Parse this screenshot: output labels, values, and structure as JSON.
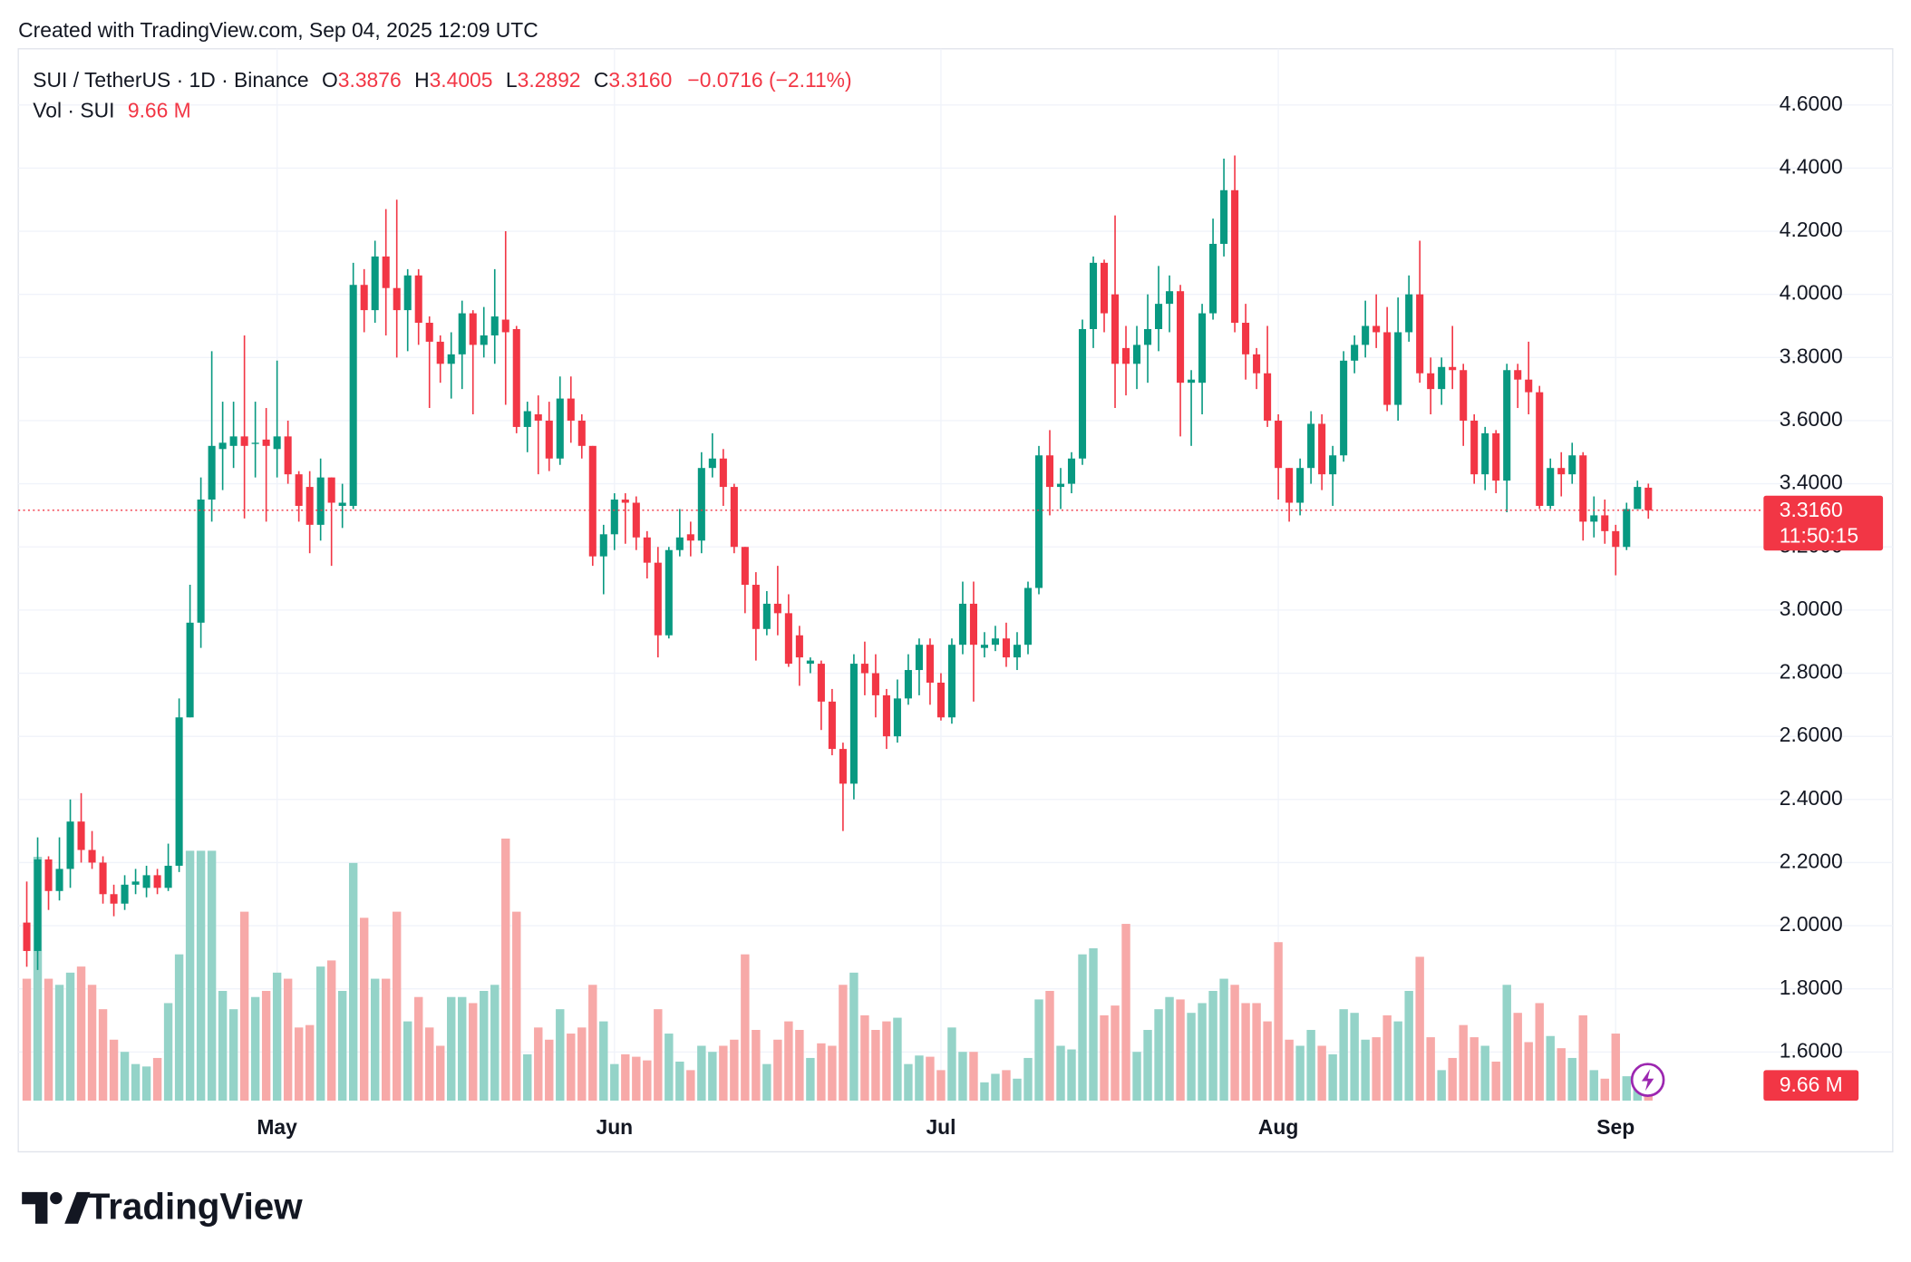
{
  "header": {
    "created": "Created with TradingView.com, Sep 04, 2025 12:09 UTC"
  },
  "brand": "TradingView",
  "chart_data": {
    "type": "candlestick",
    "symbol": "SUI / TetherUS · 1D · Binance",
    "legend": {
      "o_label": "O",
      "open": "3.3876",
      "h_label": "H",
      "high": "3.4005",
      "l_label": "L",
      "low": "3.2892",
      "c_label": "C",
      "close": "3.3160",
      "change": "−0.0716 (−2.11%)",
      "volume_title": "Vol · SUI",
      "volume": "9.66 M"
    },
    "countdown": "11:50:15",
    "up_color": "#089981",
    "down_color": "#f23645",
    "up_volume_color": "#94d3c8",
    "down_volume_color": "#f7a9a8",
    "open": [
      2.01,
      1.92,
      2.21,
      2.11,
      2.18,
      2.33,
      2.24,
      2.2,
      2.1,
      2.07,
      2.13,
      2.12,
      2.16,
      2.12,
      2.19,
      2.66,
      2.96,
      3.35,
      3.51,
      3.52,
      3.55,
      3.53,
      3.54,
      3.51,
      3.55,
      3.43,
      3.39,
      3.27,
      3.42,
      3.33,
      3.33,
      4.03,
      3.95,
      4.12,
      4.02,
      3.95,
      4.06,
      3.91,
      3.85,
      3.78,
      3.81,
      3.94,
      3.84,
      3.87,
      3.92,
      3.89,
      3.58,
      3.62,
      3.6,
      3.48,
      3.67,
      3.6,
      3.52,
      3.17,
      3.24,
      3.35,
      3.34,
      3.23,
      3.15,
      2.92,
      3.19,
      3.24,
      3.22,
      3.45,
      3.48,
      3.39,
      3.2,
      3.08,
      2.94,
      3.02,
      2.99,
      2.92,
      2.83,
      2.83,
      2.71,
      2.56,
      2.45,
      2.83,
      2.8,
      2.73,
      2.6,
      2.72,
      2.81,
      2.89,
      2.77,
      2.66,
      2.89,
      3.02,
      2.88,
      2.89,
      2.91,
      2.85,
      2.89,
      3.07,
      3.49,
      3.39,
      3.4,
      3.48,
      3.89,
      4.1,
      4.0,
      3.83,
      3.78,
      3.84,
      3.89,
      3.97,
      4.01,
      3.72,
      3.72,
      3.94,
      4.16,
      4.33,
      3.91,
      3.81,
      3.75,
      3.6,
      3.45,
      3.34,
      3.45,
      3.59,
      3.43,
      3.49,
      3.79,
      3.84,
      3.9,
      3.88,
      3.65,
      3.88,
      4.0,
      3.75,
      3.7,
      3.77,
      3.76,
      3.6,
      3.43,
      3.56,
      3.41,
      3.76,
      3.73,
      3.69,
      3.33,
      3.45,
      3.43,
      3.49,
      3.28,
      3.3,
      3.25,
      3.2,
      3.32,
      3.3876
    ],
    "high": [
      2.14,
      2.28,
      2.22,
      2.28,
      2.4,
      2.42,
      2.3,
      2.22,
      2.13,
      2.16,
      2.18,
      2.19,
      2.18,
      2.26,
      2.72,
      3.08,
      3.42,
      3.82,
      3.66,
      3.66,
      3.87,
      3.66,
      3.64,
      3.79,
      3.6,
      3.44,
      3.44,
      3.48,
      3.42,
      3.4,
      4.1,
      4.08,
      4.17,
      4.27,
      4.3,
      4.08,
      4.08,
      3.93,
      3.87,
      3.88,
      3.98,
      3.95,
      3.96,
      4.08,
      4.2,
      3.9,
      3.66,
      3.68,
      3.66,
      3.74,
      3.74,
      3.62,
      3.52,
      3.27,
      3.37,
      3.37,
      3.36,
      3.25,
      3.2,
      3.2,
      3.32,
      3.28,
      3.5,
      3.56,
      3.51,
      3.4,
      3.2,
      3.12,
      3.06,
      3.14,
      3.05,
      2.95,
      2.85,
      2.84,
      2.75,
      2.58,
      2.86,
      2.9,
      2.86,
      2.75,
      2.78,
      2.86,
      2.91,
      2.91,
      2.8,
      2.91,
      3.09,
      3.09,
      2.93,
      2.95,
      2.96,
      2.93,
      3.09,
      3.52,
      3.57,
      3.45,
      3.5,
      3.92,
      4.12,
      4.11,
      4.25,
      3.9,
      3.9,
      4.0,
      4.09,
      4.06,
      4.03,
      3.76,
      3.97,
      4.24,
      4.43,
      4.44,
      3.97,
      3.83,
      3.9,
      3.62,
      3.45,
      3.48,
      3.63,
      3.62,
      3.52,
      3.82,
      3.87,
      3.98,
      4.0,
      3.96,
      3.99,
      4.06,
      4.17,
      3.8,
      3.8,
      3.9,
      3.78,
      3.62,
      3.58,
      3.57,
      3.78,
      3.78,
      3.85,
      3.71,
      3.48,
      3.5,
      3.53,
      3.5,
      3.36,
      3.35,
      3.27,
      3.34,
      3.41,
      3.4005
    ],
    "low": [
      1.87,
      1.86,
      2.05,
      2.08,
      2.12,
      2.2,
      2.18,
      2.07,
      2.03,
      2.05,
      2.1,
      2.09,
      2.1,
      2.11,
      2.17,
      2.66,
      2.88,
      3.28,
      3.38,
      3.45,
      3.29,
      3.42,
      3.28,
      3.42,
      3.4,
      3.28,
      3.18,
      3.22,
      3.14,
      3.26,
      3.32,
      3.88,
      3.91,
      3.87,
      3.8,
      3.82,
      3.84,
      3.64,
      3.72,
      3.67,
      3.7,
      3.62,
      3.8,
      3.78,
      3.65,
      3.56,
      3.5,
      3.43,
      3.44,
      3.46,
      3.53,
      3.48,
      3.14,
      3.05,
      3.19,
      3.21,
      3.19,
      3.1,
      2.85,
      2.91,
      3.17,
      3.17,
      3.18,
      3.42,
      3.33,
      3.18,
      2.99,
      2.84,
      2.92,
      2.92,
      2.82,
      2.76,
      2.8,
      2.62,
      2.54,
      2.3,
      2.4,
      2.73,
      2.66,
      2.56,
      2.58,
      2.7,
      2.73,
      2.7,
      2.65,
      2.64,
      2.86,
      2.71,
      2.85,
      2.87,
      2.82,
      2.81,
      2.86,
      3.05,
      3.3,
      3.32,
      3.37,
      3.46,
      3.83,
      3.88,
      3.64,
      3.68,
      3.7,
      3.72,
      3.82,
      3.88,
      3.55,
      3.52,
      3.62,
      3.92,
      4.12,
      3.88,
      3.73,
      3.7,
      3.58,
      3.35,
      3.28,
      3.3,
      3.4,
      3.38,
      3.33,
      3.47,
      3.75,
      3.8,
      3.83,
      3.63,
      3.6,
      3.85,
      3.72,
      3.62,
      3.65,
      3.7,
      3.52,
      3.4,
      3.38,
      3.37,
      3.31,
      3.64,
      3.62,
      3.32,
      3.32,
      3.36,
      3.4,
      3.22,
      3.23,
      3.21,
      3.11,
      3.19,
      3.32,
      3.2892
    ],
    "close": [
      1.92,
      2.21,
      2.11,
      2.18,
      2.33,
      2.24,
      2.2,
      2.1,
      2.07,
      2.13,
      2.14,
      2.16,
      2.12,
      2.19,
      2.66,
      2.96,
      3.35,
      3.52,
      3.53,
      3.55,
      3.52,
      3.53,
      3.52,
      3.55,
      3.43,
      3.33,
      3.27,
      3.42,
      3.34,
      3.34,
      4.03,
      3.95,
      4.12,
      4.02,
      3.95,
      4.06,
      3.91,
      3.85,
      3.78,
      3.81,
      3.94,
      3.84,
      3.87,
      3.93,
      3.88,
      3.58,
      3.63,
      3.6,
      3.48,
      3.67,
      3.6,
      3.52,
      3.17,
      3.24,
      3.35,
      3.34,
      3.23,
      3.15,
      2.92,
      3.19,
      3.23,
      3.22,
      3.45,
      3.48,
      3.39,
      3.2,
      3.08,
      2.94,
      3.02,
      2.99,
      2.83,
      2.85,
      2.84,
      2.71,
      2.56,
      2.45,
      2.83,
      2.8,
      2.73,
      2.6,
      2.72,
      2.81,
      2.89,
      2.77,
      2.66,
      2.89,
      3.02,
      2.89,
      2.89,
      2.91,
      2.85,
      2.89,
      3.07,
      3.49,
      3.39,
      3.4,
      3.48,
      3.89,
      4.1,
      3.94,
      3.78,
      3.78,
      3.84,
      3.89,
      3.97,
      4.01,
      3.72,
      3.73,
      3.94,
      4.16,
      4.33,
      3.91,
      3.81,
      3.75,
      3.6,
      3.45,
      3.34,
      3.45,
      3.59,
      3.43,
      3.49,
      3.79,
      3.84,
      3.9,
      3.88,
      3.65,
      3.88,
      4.0,
      3.75,
      3.7,
      3.77,
      3.76,
      3.6,
      3.43,
      3.56,
      3.41,
      3.76,
      3.73,
      3.69,
      3.33,
      3.45,
      3.43,
      3.49,
      3.28,
      3.3,
      3.25,
      3.2,
      3.32,
      3.39,
      3.316
    ],
    "volume": [
      50,
      100,
      50,
      47.5,
      52.5,
      55,
      47.5,
      37.5,
      25,
      20,
      15,
      14,
      17.5,
      40,
      60,
      102.5,
      102.5,
      102.5,
      45,
      37.5,
      77.5,
      42.5,
      45,
      52.5,
      50,
      30,
      31,
      55,
      57.5,
      45,
      97.5,
      75,
      50,
      50,
      77.5,
      32.5,
      42.5,
      30,
      22.5,
      42.5,
      42.5,
      40,
      45,
      47.5,
      107.5,
      77.5,
      19,
      30,
      25,
      37.5,
      27.5,
      30,
      47.5,
      32.5,
      15,
      19,
      18,
      16.5,
      37.5,
      27.5,
      16,
      12.5,
      22.5,
      20,
      22.5,
      25,
      60,
      29,
      15,
      25,
      32.5,
      29,
      17.5,
      23.5,
      22.5,
      47.5,
      52.5,
      35,
      29,
      32.5,
      34,
      15,
      18.5,
      18,
      12.5,
      30,
      20,
      20,
      7.5,
      11,
      12.5,
      9,
      17.5,
      41.5,
      45,
      22.5,
      21,
      60,
      62.5,
      35,
      39,
      72.5,
      20,
      29,
      37.5,
      42.5,
      41.5,
      36,
      40,
      45,
      50,
      47.5,
      40,
      40,
      32.5,
      65,
      25,
      22.5,
      29,
      22.5,
      19,
      37.5,
      36,
      25,
      26,
      35,
      32.5,
      45,
      59,
      26,
      12.5,
      17.5,
      31,
      26,
      22.5,
      16,
      47.5,
      36,
      24,
      40,
      26.5,
      21.5,
      17.5,
      35,
      12.5,
      9,
      27.5,
      10,
      7.5,
      9.66
    ],
    "xlim": [
      -0.78,
      158.8
    ],
    "xticks": [
      {
        "value": 23,
        "label": "May"
      },
      {
        "value": 54,
        "label": "Jun"
      },
      {
        "value": 84,
        "label": "Jul"
      },
      {
        "value": 115,
        "label": "Aug"
      },
      {
        "value": 146,
        "label": "Sep"
      }
    ],
    "ylim": [
      1.446,
      4.778
    ],
    "yticks": [
      {
        "value": 1.6,
        "label": "1.6000"
      },
      {
        "value": 1.8,
        "label": "1.8000"
      },
      {
        "value": 2.0,
        "label": "2.0000"
      },
      {
        "value": 2.2,
        "label": "2.2000"
      },
      {
        "value": 2.4,
        "label": "2.4000"
      },
      {
        "value": 2.6,
        "label": "2.6000"
      },
      {
        "value": 2.8,
        "label": "2.8000"
      },
      {
        "value": 3.0,
        "label": "3.0000"
      },
      {
        "value": 3.2,
        "label": "3.2000"
      },
      {
        "value": 3.4,
        "label": "3.4000"
      },
      {
        "value": 3.6,
        "label": "3.6000"
      },
      {
        "value": 3.8,
        "label": "3.8000"
      },
      {
        "value": 4.0,
        "label": "4.0000"
      },
      {
        "value": 4.2,
        "label": "4.2000"
      },
      {
        "value": 4.4,
        "label": "4.4000"
      },
      {
        "value": 4.6,
        "label": "4.6000"
      }
    ],
    "grid": true
  }
}
